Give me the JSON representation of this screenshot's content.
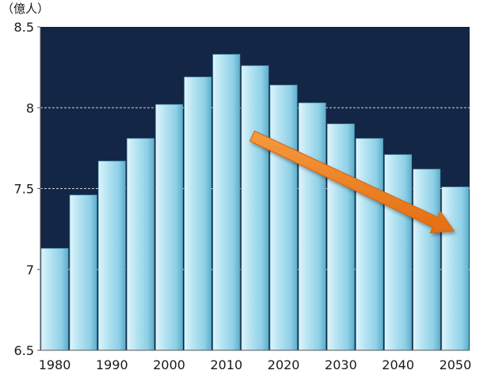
{
  "chart_data": {
    "type": "bar",
    "unit_label": "（億人）",
    "categories": [
      "1980",
      "1985",
      "1990",
      "1995",
      "2000",
      "2005",
      "2010",
      "2015",
      "2020",
      "2025",
      "2030",
      "2035",
      "2040",
      "2045",
      "2050"
    ],
    "x_tick_labels": [
      "1980",
      "1990",
      "2000",
      "2010",
      "2020",
      "2030",
      "2040",
      "2050"
    ],
    "values": [
      7.13,
      7.46,
      7.67,
      7.81,
      8.02,
      8.19,
      8.33,
      8.26,
      8.14,
      8.03,
      7.9,
      7.81,
      7.71,
      7.62,
      7.51
    ],
    "ylim": [
      6.5,
      8.5
    ],
    "y_ticks": [
      {
        "value": 6.5,
        "label": "6.5"
      },
      {
        "value": 7,
        "label": "7"
      },
      {
        "value": 7.5,
        "label": "7.5"
      },
      {
        "value": 8,
        "label": "8"
      },
      {
        "value": 8.5,
        "label": "8.5"
      }
    ],
    "grid": "horizontal dashed at 7.5 and 8",
    "annotation": {
      "type": "downward trend arrow",
      "from_category": "2015",
      "to_category": "2050"
    },
    "colors": {
      "plot_background": "#142645",
      "bar_light": "#dff4fb",
      "bar_mid": "#a6dcee",
      "bar_dark": "#5eaecb",
      "arrow": "#ef7d1f"
    }
  }
}
